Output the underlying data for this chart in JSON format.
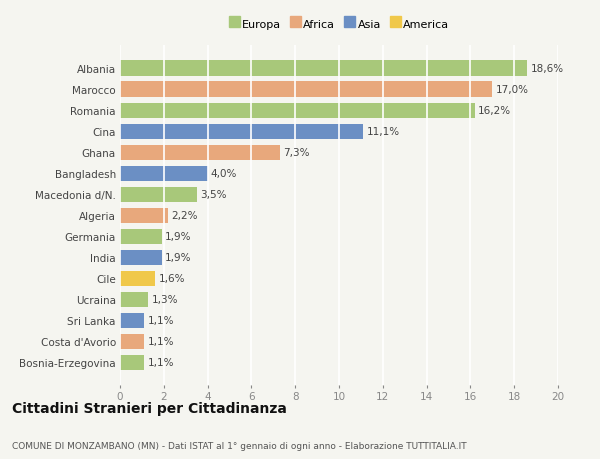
{
  "countries": [
    "Albania",
    "Marocco",
    "Romania",
    "Cina",
    "Ghana",
    "Bangladesh",
    "Macedonia d/N.",
    "Algeria",
    "Germania",
    "India",
    "Cile",
    "Ucraina",
    "Sri Lanka",
    "Costa d'Avorio",
    "Bosnia-Erzegovina"
  ],
  "values": [
    18.6,
    17.0,
    16.2,
    11.1,
    7.3,
    4.0,
    3.5,
    2.2,
    1.9,
    1.9,
    1.6,
    1.3,
    1.1,
    1.1,
    1.1
  ],
  "labels": [
    "18,6%",
    "17,0%",
    "16,2%",
    "11,1%",
    "7,3%",
    "4,0%",
    "3,5%",
    "2,2%",
    "1,9%",
    "1,9%",
    "1,6%",
    "1,3%",
    "1,1%",
    "1,1%",
    "1,1%"
  ],
  "regions": [
    "Europa",
    "Africa",
    "Europa",
    "Asia",
    "Africa",
    "Asia",
    "Europa",
    "Africa",
    "Europa",
    "Asia",
    "America",
    "Europa",
    "Asia",
    "Africa",
    "Europa"
  ],
  "colors": {
    "Europa": "#a8c87a",
    "Africa": "#e8a87c",
    "Asia": "#6b8fc4",
    "America": "#f0c84a"
  },
  "xlim": [
    0,
    20
  ],
  "xticks": [
    0,
    2,
    4,
    6,
    8,
    10,
    12,
    14,
    16,
    18,
    20
  ],
  "title": "Cittadini Stranieri per Cittadinanza",
  "subtitle": "COMUNE DI MONZAMBANO (MN) - Dati ISTAT al 1° gennaio di ogni anno - Elaborazione TUTTITALIA.IT",
  "background_color": "#f5f5f0",
  "grid_color": "#ffffff",
  "bar_height": 0.72,
  "label_fontsize": 7.5,
  "ytick_fontsize": 7.5,
  "xtick_fontsize": 7.5,
  "title_fontsize": 10,
  "subtitle_fontsize": 6.5,
  "legend_fontsize": 8
}
